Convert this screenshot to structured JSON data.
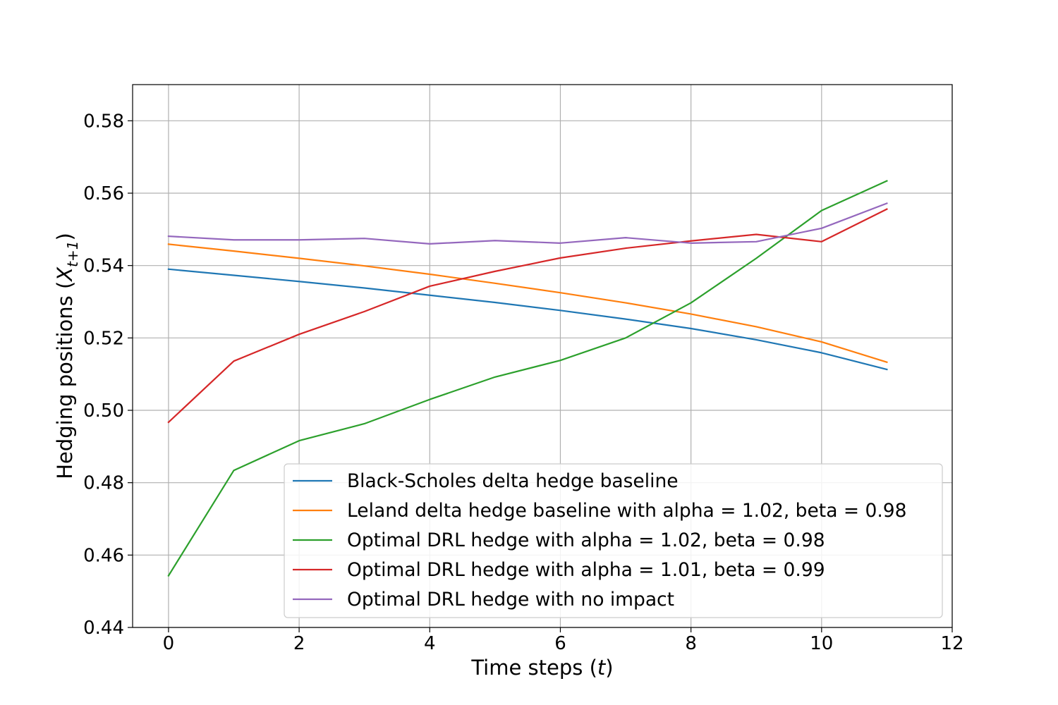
{
  "chart_data": {
    "type": "line",
    "title": "",
    "xlabel": "Time steps (",
    "xlabel_var": "t",
    "xlabel_close": ")",
    "ylabel": "Hedging positions (",
    "ylabel_var": "X",
    "ylabel_sub": "t+1",
    "ylabel_close": ")",
    "xlim": [
      -0.55,
      12
    ],
    "ylim": [
      0.44,
      0.59
    ],
    "xticks": [
      0,
      2,
      4,
      6,
      8,
      10,
      12
    ],
    "xtick_labels": [
      "0",
      "2",
      "4",
      "6",
      "8",
      "10",
      "12"
    ],
    "yticks": [
      0.44,
      0.46,
      0.48,
      0.5,
      0.52,
      0.54,
      0.56,
      0.58
    ],
    "ytick_labels": [
      "0.44",
      "0.46",
      "0.48",
      "0.50",
      "0.52",
      "0.54",
      "0.56",
      "0.58"
    ],
    "grid": true,
    "legend_position": "lower-right",
    "x": [
      0,
      1,
      2,
      3,
      4,
      5,
      6,
      7,
      8,
      9,
      10,
      11
    ],
    "series": [
      {
        "name": "Black-Scholes delta hedge baseline",
        "color": "#1f77b4",
        "values": [
          0.539,
          0.5373,
          0.5356,
          0.5338,
          0.5318,
          0.5298,
          0.5276,
          0.5252,
          0.5226,
          0.5195,
          0.5159,
          0.5113
        ]
      },
      {
        "name": "Leland delta hedge baseline with alpha = 1.02, beta = 0.98",
        "color": "#ff7f0e",
        "values": [
          0.5459,
          0.544,
          0.542,
          0.5399,
          0.5376,
          0.5351,
          0.5325,
          0.5297,
          0.5266,
          0.5231,
          0.5189,
          0.5133
        ]
      },
      {
        "name": "Optimal DRL hedge with alpha = 1.02, beta = 0.98",
        "color": "#2ca02c",
        "values": [
          0.4543,
          0.4834,
          0.4916,
          0.4963,
          0.503,
          0.5092,
          0.5138,
          0.52,
          0.5297,
          0.542,
          0.5552,
          0.5634
        ]
      },
      {
        "name": "Optimal DRL hedge with alpha = 1.01, beta = 0.99",
        "color": "#d62728",
        "values": [
          0.4967,
          0.5136,
          0.521,
          0.5273,
          0.5343,
          0.5384,
          0.5421,
          0.5448,
          0.5468,
          0.5486,
          0.5466,
          0.5556
        ]
      },
      {
        "name": "Optimal DRL hedge with no impact",
        "color": "#9467bd",
        "values": [
          0.5481,
          0.5471,
          0.5471,
          0.5475,
          0.546,
          0.5469,
          0.5462,
          0.5477,
          0.5462,
          0.5466,
          0.5503,
          0.5572
        ]
      }
    ]
  }
}
